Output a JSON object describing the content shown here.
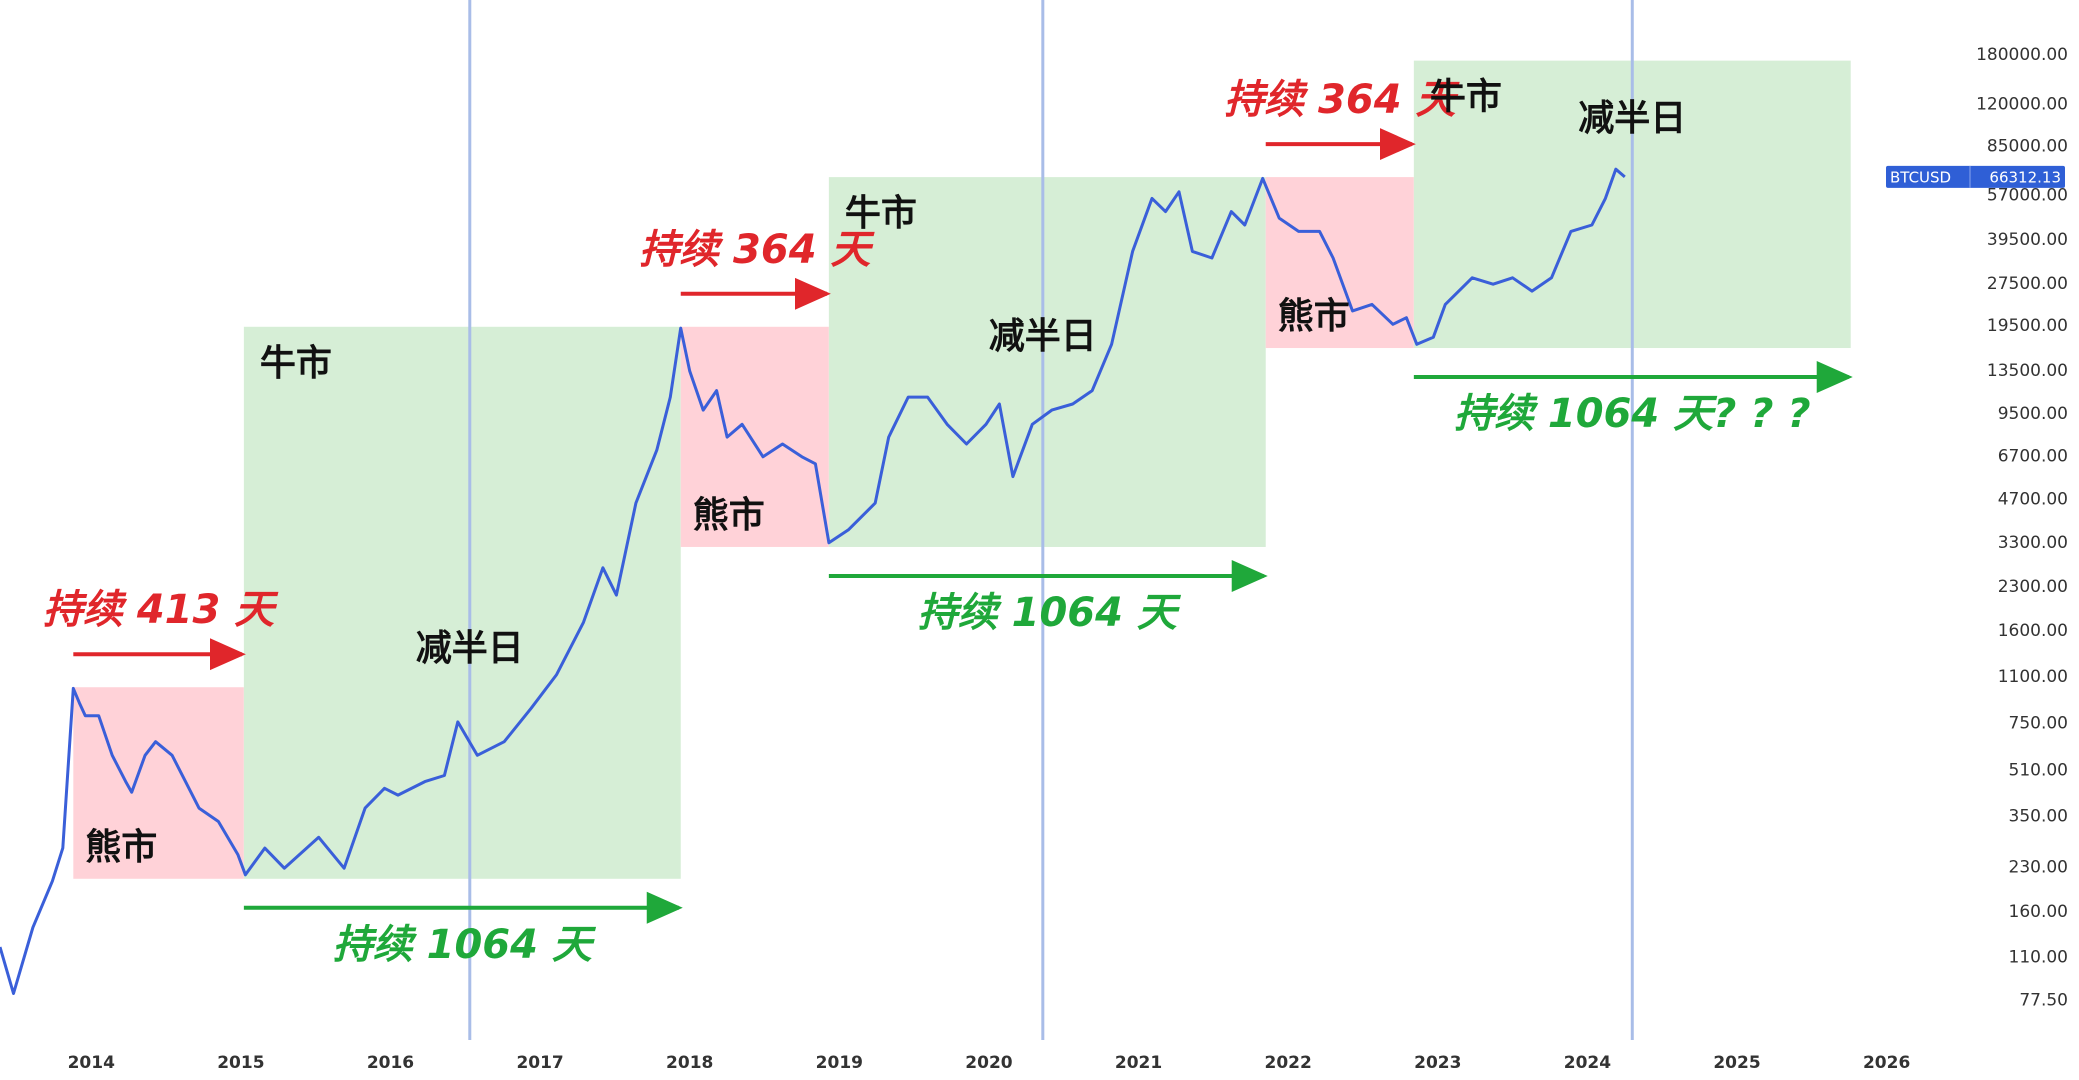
{
  "chart_data": {
    "type": "line",
    "x": [
      2013.39,
      2013.48,
      2013.61,
      2013.74,
      2013.81,
      2013.88,
      2013.92,
      2013.96,
      2014.05,
      2014.14,
      2014.23,
      2014.27,
      2014.36,
      2014.43,
      2014.54,
      2014.63,
      2014.72,
      2014.85,
      2014.98,
      2015.03,
      2015.16,
      2015.29,
      2015.52,
      2015.69,
      2015.83,
      2015.96,
      2016.05,
      2016.23,
      2016.36,
      2016.45,
      2016.58,
      2016.76,
      2016.94,
      2017.11,
      2017.29,
      2017.42,
      2017.51,
      2017.64,
      2017.78,
      2017.87,
      2017.94,
      2018.0,
      2018.09,
      2018.18,
      2018.25,
      2018.35,
      2018.49,
      2018.62,
      2018.75,
      2018.84,
      2018.93,
      2019.06,
      2019.24,
      2019.33,
      2019.46,
      2019.59,
      2019.72,
      2019.85,
      2019.98,
      2020.07,
      2020.16,
      2020.29,
      2020.42,
      2020.56,
      2020.69,
      2020.82,
      2020.96,
      2021.09,
      2021.18,
      2021.27,
      2021.36,
      2021.49,
      2021.62,
      2021.71,
      2021.83,
      2021.94,
      2022.07,
      2022.21,
      2022.3,
      2022.43,
      2022.56,
      2022.7,
      2022.79,
      2022.86,
      2022.97,
      2023.05,
      2023.23,
      2023.37,
      2023.5,
      2023.63,
      2023.76,
      2023.89,
      2024.03,
      2024.12,
      2024.19,
      2024.25
    ],
    "series": [
      {
        "name": "BTCUSD",
        "color": "#3a5fd9",
        "values": [
          120,
          82,
          141,
          206,
          270,
          1000,
          890,
          800,
          800,
          578,
          466,
          427,
          578,
          646,
          578,
          466,
          375,
          336,
          256,
          217,
          270,
          229,
          295,
          229,
          375,
          441,
          417,
          466,
          490,
          760,
          578,
          646,
          850,
          1120,
          1720,
          2690,
          2150,
          4570,
          7060,
          10900,
          19200,
          13500,
          9800,
          11500,
          7850,
          8720,
          6680,
          7420,
          6680,
          6310,
          3300,
          3670,
          4570,
          7850,
          10900,
          10900,
          8720,
          7420,
          8720,
          10300,
          5680,
          8720,
          9800,
          10300,
          11500,
          16800,
          36000,
          55600,
          49900,
          58700,
          36000,
          34100,
          49900,
          44700,
          65500,
          47300,
          42400,
          42400,
          34100,
          22100,
          23300,
          19800,
          20900,
          16800,
          17800,
          23300,
          29000,
          27500,
          29000,
          26000,
          29000,
          42400,
          44700,
          55600,
          70600,
          66300
        ]
      }
    ],
    "last_price": 66312.13,
    "xlim": [
      2013.39,
      2026.33
    ],
    "xticks": [
      2014,
      2015,
      2016,
      2017,
      2018,
      2019,
      2020,
      2021,
      2022,
      2023,
      2024,
      2025,
      2026
    ],
    "ylim": [
      56,
      240000
    ],
    "log_y": true,
    "yticks": [
      {
        "value": 180000,
        "label": "180000.00"
      },
      {
        "value": 120000,
        "label": "120000.00"
      },
      {
        "value": 85000,
        "label": "85000.00"
      },
      {
        "value": 57000,
        "label": "57000.00"
      },
      {
        "value": 39500,
        "label": "39500.00"
      },
      {
        "value": 27500,
        "label": "27500.00"
      },
      {
        "value": 19500,
        "label": "19500.00"
      },
      {
        "value": 13500,
        "label": "13500.00"
      },
      {
        "value": 9500,
        "label": "9500.00"
      },
      {
        "value": 6700,
        "label": "6700.00"
      },
      {
        "value": 4700,
        "label": "4700.00"
      },
      {
        "value": 3300,
        "label": "3300.00"
      },
      {
        "value": 2300,
        "label": "2300.00"
      },
      {
        "value": 1600,
        "label": "1600.00"
      },
      {
        "value": 1100,
        "label": "1100.00"
      },
      {
        "value": 750,
        "label": "750.00"
      },
      {
        "value": 510,
        "label": "510.00"
      },
      {
        "value": 350,
        "label": "350.00"
      },
      {
        "value": 230,
        "label": "230.00"
      },
      {
        "value": 160,
        "label": "160.00"
      },
      {
        "value": 110,
        "label": "110.00"
      },
      {
        "value": 77.5,
        "label": "77.50"
      }
    ],
    "regions": [
      {
        "label": "熊市",
        "x": [
          2013.88,
          2015.02
        ],
        "y": [
          210,
          1010
        ],
        "color": "#ffd2d8",
        "duration": "持续 413 天",
        "arrow_color": "#e0262b"
      },
      {
        "label": "牛市",
        "x": [
          2015.02,
          2017.94
        ],
        "y": [
          210,
          19400
        ],
        "color": "#d6eed6",
        "duration": "持续 1064 天",
        "arrow_color": "#1fa83a"
      },
      {
        "label": "熊市",
        "x": [
          2017.94,
          2018.93
        ],
        "y": [
          3190,
          19400
        ],
        "color": "#ffd2d8",
        "duration": "持续 364 天",
        "arrow_color": "#e0262b"
      },
      {
        "label": "牛市",
        "x": [
          2018.93,
          2021.85
        ],
        "y": [
          3190,
          66200
        ],
        "color": "#d6eed6",
        "duration": "持续 1064 天",
        "arrow_color": "#1fa83a"
      },
      {
        "label": "熊市",
        "x": [
          2021.85,
          2022.84
        ],
        "y": [
          16300,
          66200
        ],
        "color": "#ffd2d8",
        "duration": "持续 364 天",
        "arrow_color": "#e0262b"
      },
      {
        "label": "牛市",
        "x": [
          2022.84,
          2025.76
        ],
        "y": [
          16300,
          172000
        ],
        "color": "#d6eed6",
        "duration": "持续 1064 天? ? ?",
        "arrow_color": "#1fa83a"
      }
    ],
    "halvings": [
      {
        "x": 2016.53,
        "label": "减半日"
      },
      {
        "x": 2020.36,
        "label": "减半日"
      },
      {
        "x": 2024.3,
        "label": "减半日"
      }
    ]
  }
}
